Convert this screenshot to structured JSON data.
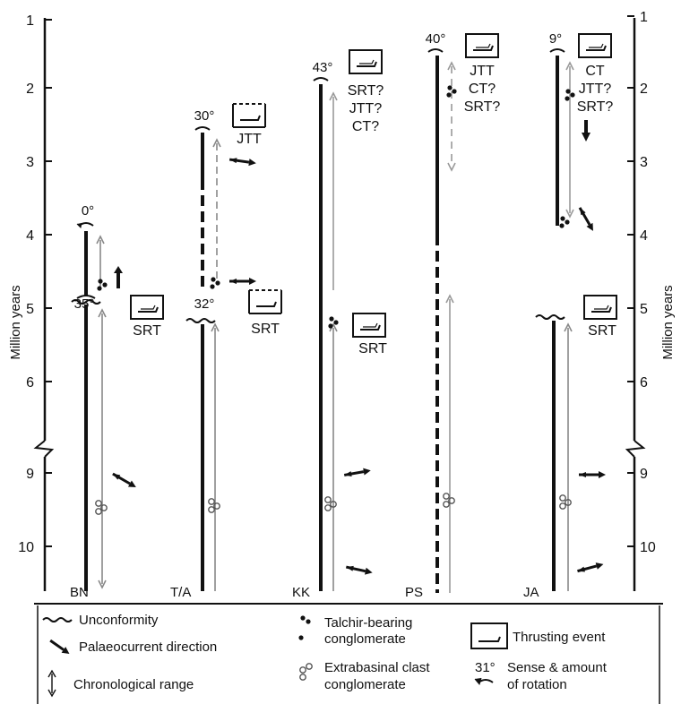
{
  "y_axis_title": "Million years",
  "ticks_upper": [
    "1",
    "2",
    "3",
    "4",
    "5",
    "6"
  ],
  "ticks_lower": [
    "9",
    "10"
  ],
  "columns": {
    "bn": {
      "label": "BN",
      "rotations": [
        "0°",
        "35°"
      ],
      "events": [
        "SRT"
      ]
    },
    "ta": {
      "label": "T/A",
      "rotations": [
        "30°",
        "32°"
      ],
      "events": [
        "JTT",
        "SRT"
      ]
    },
    "kk": {
      "label": "KK",
      "rotations": [
        "43°"
      ],
      "events": [
        "SRT?",
        "JTT?",
        "CT?",
        "SRT"
      ]
    },
    "ps": {
      "label": "PS",
      "rotations": [
        "40°"
      ],
      "events": [
        "JTT",
        "CT?",
        "SRT?"
      ]
    },
    "ja": {
      "label": "JA",
      "rotations": [
        "9°"
      ],
      "events": [
        "CT",
        "JTT?",
        "SRT?",
        "SRT"
      ]
    }
  },
  "legend": {
    "unconformity": "Unconformity",
    "palaeocurrent": "Palaeocurrent direction",
    "chronological": "Chronological range",
    "talchir_1": "Talchir-bearing",
    "talchir_2": "conglomerate",
    "extrabasinal_1": "Extrabasinal clast",
    "extrabasinal_2": "conglomerate",
    "thrusting": "Thrusting event",
    "rotation_sample": "31°",
    "rotation_1": "Sense & amount",
    "rotation_2": "of rotation"
  }
}
